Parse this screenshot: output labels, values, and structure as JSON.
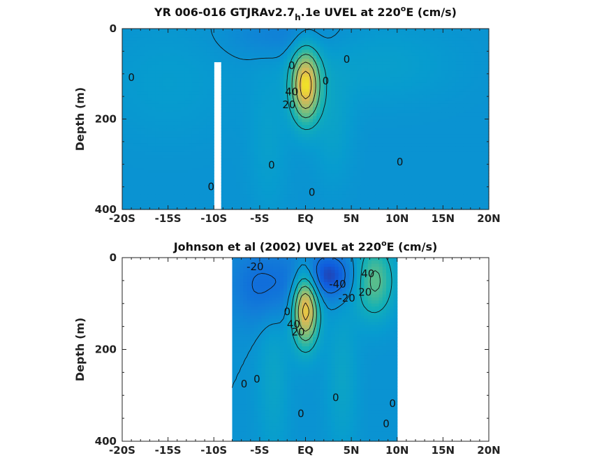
{
  "chart_data": [
    {
      "type": "heatmap",
      "title_main": "YR 006-016 GTJRAv2.7",
      "title_sub": "h",
      "title_rest": ".1e UVEL at 220",
      "title_sup": "o",
      "title_end": "E (cm/s)",
      "xlabel": "",
      "ylabel": "Depth (m)",
      "x_ticks": [
        -20,
        -15,
        -10,
        -5,
        0,
        5,
        10,
        15,
        20
      ],
      "x_tick_labels": [
        "-20S",
        "-15S",
        "-10S",
        "-5S",
        "EQ",
        "5N",
        "10N",
        "15N",
        "20N"
      ],
      "y_ticks": [
        0,
        200,
        400
      ],
      "y_tick_labels": [
        "0",
        "200",
        "400"
      ],
      "xlim": [
        -20,
        20
      ],
      "ylim": [
        0,
        400
      ],
      "y_reversed": true,
      "data_extent": [
        -20,
        20
      ],
      "gaps": [
        {
          "x0": -10.1,
          "x1": -9.3,
          "y0": 75,
          "y1": 400
        }
      ],
      "features": [
        {
          "x": 0,
          "y": 125,
          "amplitude": 90,
          "sigma_x": 1.1,
          "sigma_y": 55
        },
        {
          "x": 3,
          "y": 210,
          "amplitude": 10,
          "sigma_x": 1.5,
          "sigma_y": 90
        },
        {
          "x": -4,
          "y": 250,
          "amplitude": 8,
          "sigma_x": 1.5,
          "sigma_y": 120
        },
        {
          "x": -2.5,
          "y": 15,
          "amplitude": -12,
          "sigma_x": 4,
          "sigma_y": 35
        },
        {
          "x": 8,
          "y": 80,
          "amplitude": 8,
          "sigma_x": 6,
          "sigma_y": 60
        },
        {
          "x": -15,
          "y": 120,
          "amplitude": 6,
          "sigma_x": 5,
          "sigma_y": 90
        }
      ],
      "contour_levels": [
        -40,
        -20,
        0,
        20,
        40,
        60,
        80
      ],
      "contour_labels": [
        {
          "x": -19,
          "y": 108,
          "text": "0"
        },
        {
          "x": -1.5,
          "y": 82,
          "text": "0"
        },
        {
          "x": 4.5,
          "y": 68,
          "text": "0"
        },
        {
          "x": 2.2,
          "y": 116,
          "text": "0"
        },
        {
          "x": -1.5,
          "y": 140,
          "text": "40"
        },
        {
          "x": -1.8,
          "y": 168,
          "text": "20"
        },
        {
          "x": -3.7,
          "y": 302,
          "text": "0"
        },
        {
          "x": 10.3,
          "y": 295,
          "text": "0"
        },
        {
          "x": -10.3,
          "y": 350,
          "text": "0"
        },
        {
          "x": 0.7,
          "y": 362,
          "text": "0"
        }
      ]
    },
    {
      "type": "heatmap",
      "title_main": "Johnson et al (2002) UVEL at 220",
      "title_sub": "",
      "title_rest": "",
      "title_sup": "o",
      "title_end": "E (cm/s)",
      "xlabel": "",
      "ylabel": "Depth (m)",
      "x_ticks": [
        -20,
        -15,
        -10,
        -5,
        0,
        5,
        10,
        15,
        20
      ],
      "x_tick_labels": [
        "-20S",
        "-15S",
        "-10S",
        "-5S",
        "EQ",
        "5N",
        "10N",
        "15N",
        "20N"
      ],
      "y_ticks": [
        0,
        200,
        400
      ],
      "y_tick_labels": [
        "0",
        "200",
        "400"
      ],
      "xlim": [
        -20,
        20
      ],
      "ylim": [
        0,
        400
      ],
      "y_reversed": true,
      "data_extent": [
        -8,
        10
      ],
      "features": [
        {
          "x": 0,
          "y": 110,
          "amplitude": 95,
          "sigma_x": 1.0,
          "sigma_y": 55
        },
        {
          "x": 2.5,
          "y": 40,
          "amplitude": -40,
          "sigma_x": 2,
          "sigma_y": 35
        },
        {
          "x": -4,
          "y": 60,
          "amplitude": -25,
          "sigma_x": 3,
          "sigma_y": 60
        },
        {
          "x": 7.5,
          "y": 50,
          "amplitude": 45,
          "sigma_x": 1.5,
          "sigma_y": 55
        },
        {
          "x": 4,
          "y": 260,
          "amplitude": 12,
          "sigma_x": 1.2,
          "sigma_y": 120
        },
        {
          "x": -3.5,
          "y": 250,
          "amplitude": 12,
          "sigma_x": 1.2,
          "sigma_y": 140
        }
      ],
      "contour_levels": [
        -40,
        -20,
        0,
        20,
        40,
        60,
        80
      ],
      "contour_labels": [
        {
          "x": -5.5,
          "y": 20,
          "text": "-20"
        },
        {
          "x": 3.5,
          "y": 58,
          "text": "-40"
        },
        {
          "x": 4.5,
          "y": 88,
          "text": "-20"
        },
        {
          "x": 6.5,
          "y": 75,
          "text": "20"
        },
        {
          "x": 6.8,
          "y": 35,
          "text": "40"
        },
        {
          "x": -2,
          "y": 118,
          "text": "0"
        },
        {
          "x": -1.3,
          "y": 145,
          "text": "40"
        },
        {
          "x": -0.8,
          "y": 162,
          "text": "20"
        },
        {
          "x": -6.7,
          "y": 275,
          "text": "0"
        },
        {
          "x": -5.3,
          "y": 265,
          "text": "0"
        },
        {
          "x": 3.3,
          "y": 305,
          "text": "0"
        },
        {
          "x": -0.5,
          "y": 340,
          "text": "0"
        },
        {
          "x": 9.5,
          "y": 318,
          "text": "0"
        },
        {
          "x": 8.8,
          "y": 362,
          "text": "0"
        }
      ]
    }
  ]
}
